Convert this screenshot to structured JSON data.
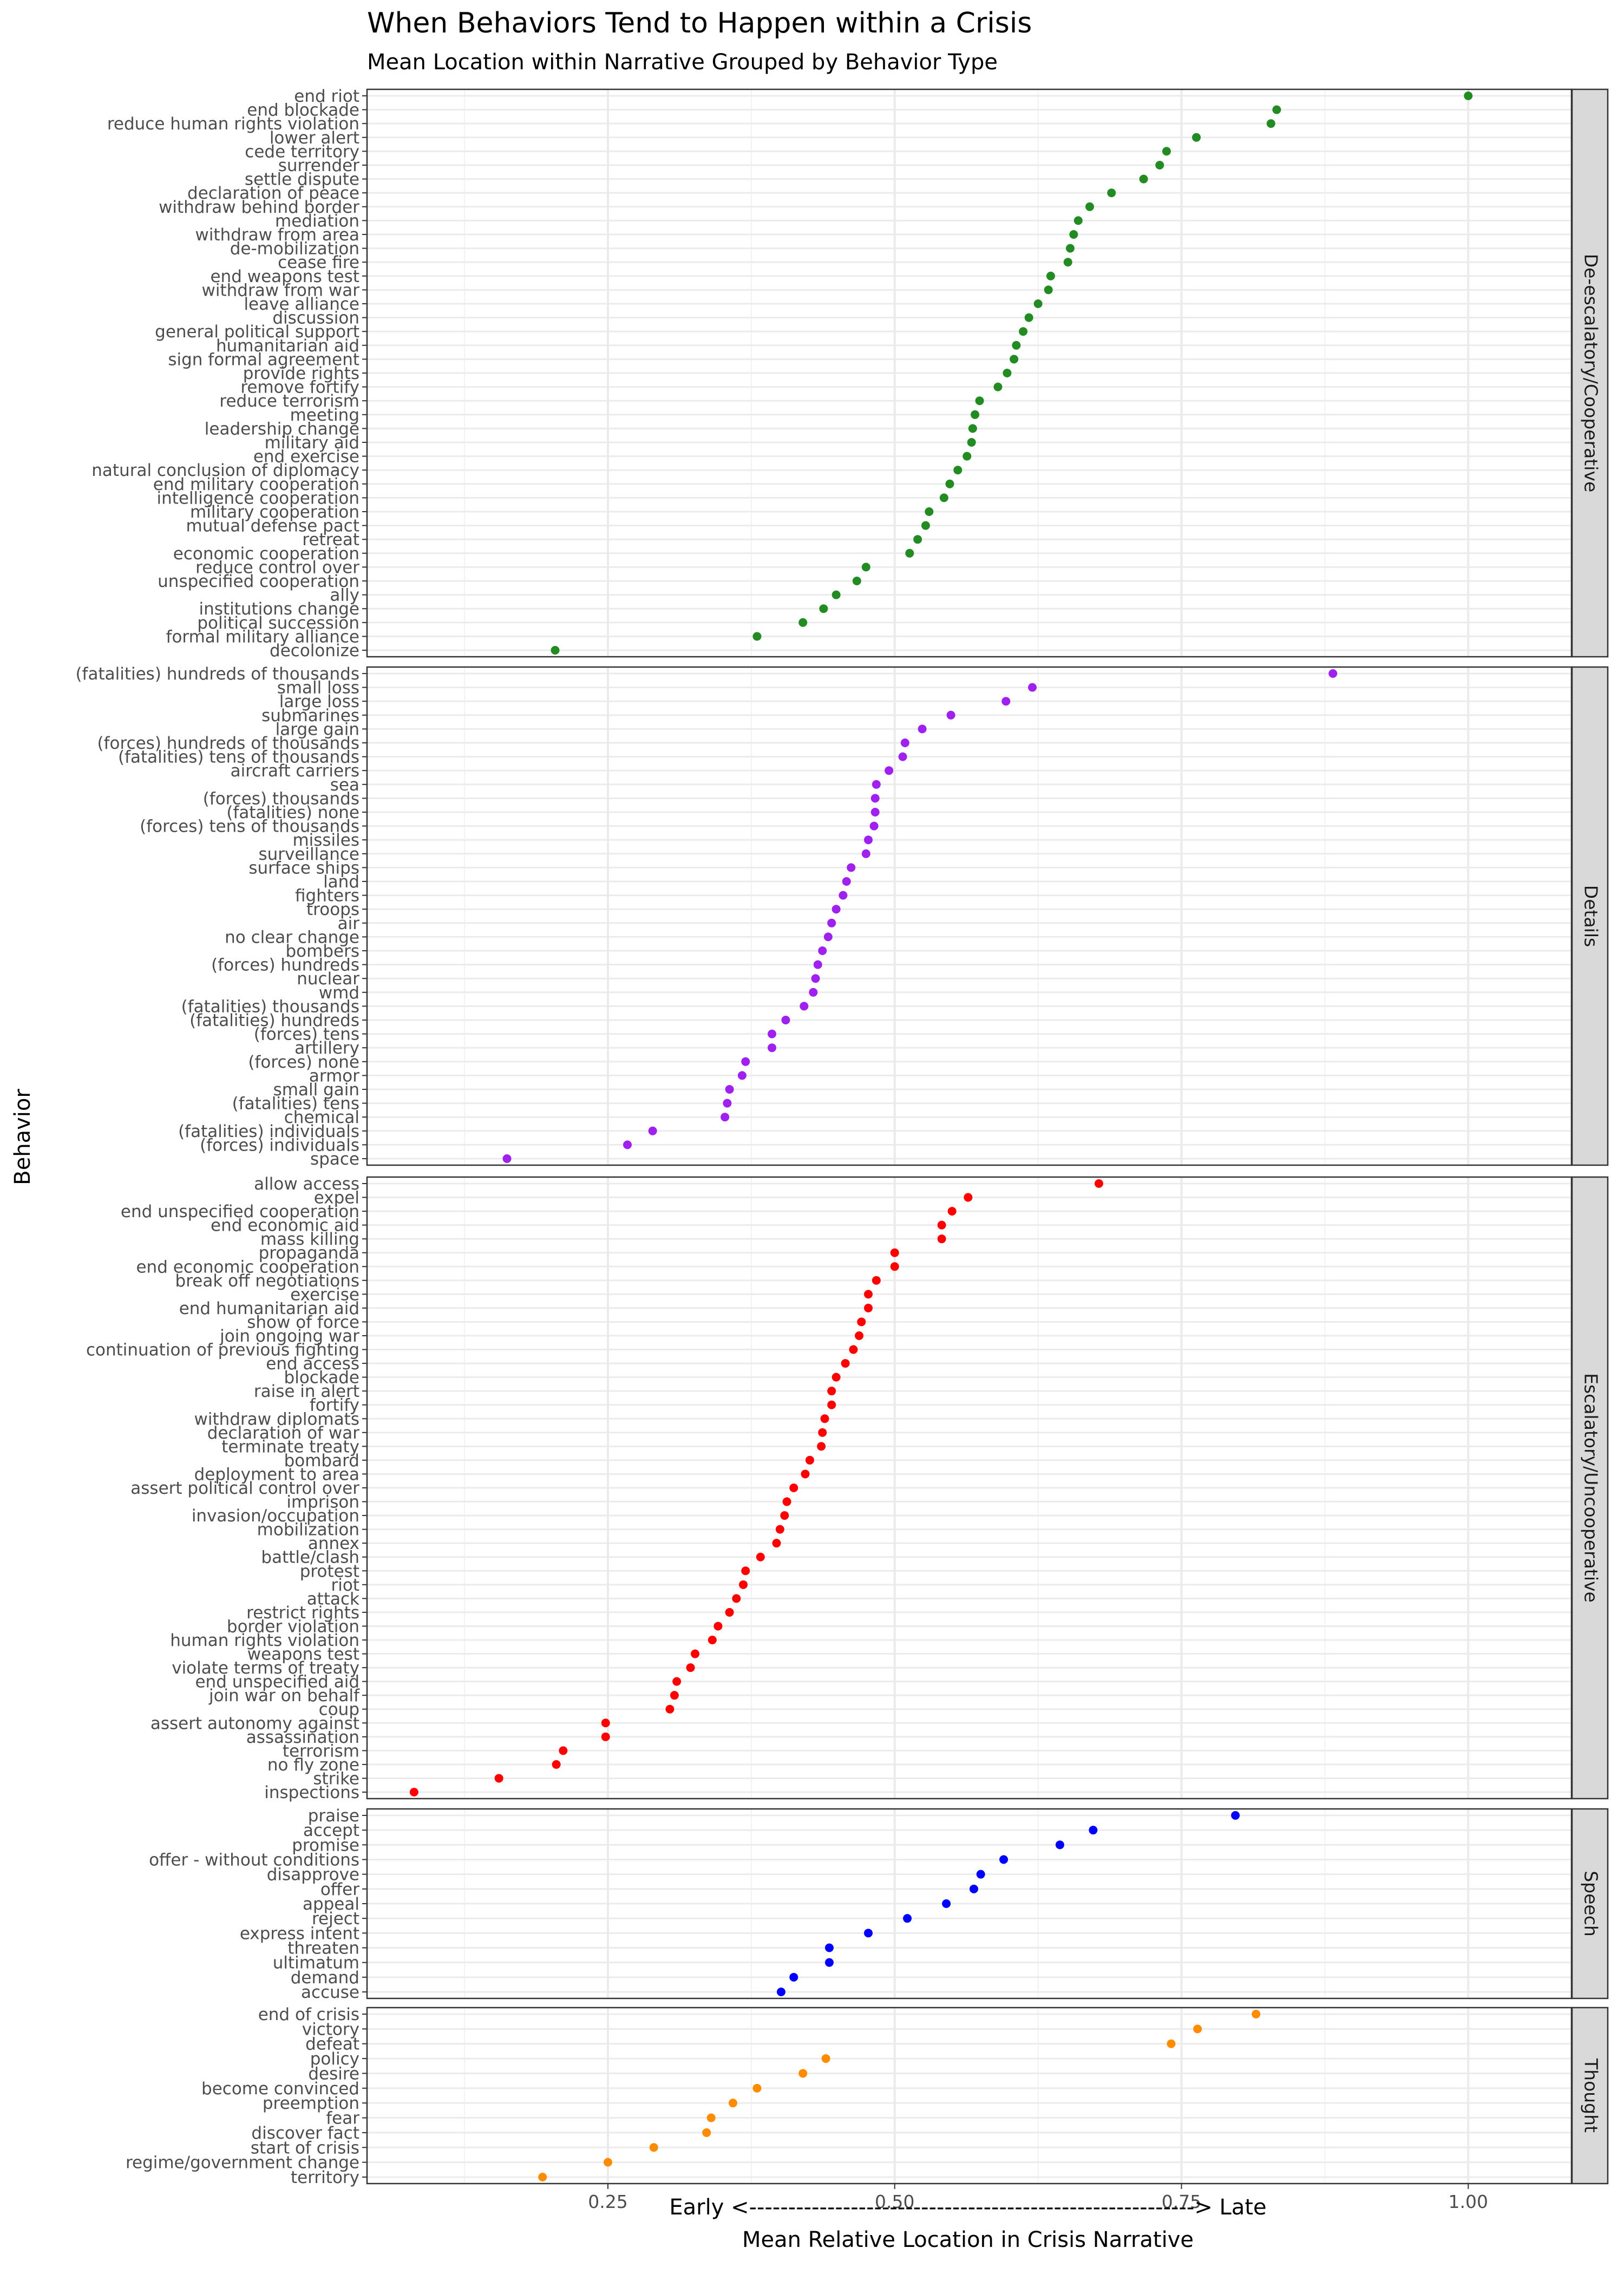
{
  "chart_data": {
    "type": "scatter",
    "title": "When Behaviors Tend to Happen within a Crisis",
    "subtitle": "Mean Location within Narrative Grouped by Behavior Type",
    "xlabel_line1": "Early <---------------------------------------------------------> Late",
    "xlabel_line2": "Mean Relative Location in Crisis Narrative",
    "ylabel": "Behavior",
    "xlim": [
      0.04,
      1.09
    ],
    "x_ticks": [
      0.25,
      0.5,
      0.75,
      1.0
    ],
    "x_tick_labels": [
      "0.25",
      "0.50",
      "0.75",
      "1.00"
    ],
    "grid": true,
    "facets": [
      {
        "name": "De-escalatory/Cooperative",
        "color": "#228B22",
        "behaviors": [
          "end riot",
          "end blockade",
          "reduce human rights violation",
          "lower alert",
          "cede territory",
          "surrender",
          "settle dispute",
          "declaration of peace",
          "withdraw behind border",
          "mediation",
          "withdraw from area",
          "de-mobilization",
          "cease fire",
          "end weapons test",
          "withdraw from war",
          "leave alliance",
          "discussion",
          "general political support",
          "humanitarian aid",
          "sign formal agreement",
          "provide rights",
          "remove fortify",
          "reduce terrorism",
          "meeting",
          "leadership change",
          "military aid",
          "end exercise",
          "natural conclusion of diplomacy",
          "end military cooperation",
          "intelligence cooperation",
          "military cooperation",
          "mutual defense pact",
          "retreat",
          "economic cooperation",
          "reduce control over",
          "unspecified cooperation",
          "ally",
          "institutions change",
          "political succession",
          "formal military alliance",
          "decolonize"
        ],
        "values": [
          1.0,
          0.833,
          0.828,
          0.763,
          0.737,
          0.731,
          0.717,
          0.689,
          0.67,
          0.66,
          0.656,
          0.653,
          0.651,
          0.636,
          0.634,
          0.625,
          0.617,
          0.612,
          0.606,
          0.604,
          0.598,
          0.59,
          0.574,
          0.57,
          0.568,
          0.567,
          0.563,
          0.555,
          0.548,
          0.543,
          0.53,
          0.527,
          0.52,
          0.513,
          0.475,
          0.467,
          0.449,
          0.438,
          0.42,
          0.38,
          0.204
        ]
      },
      {
        "name": "Details",
        "color": "#A020F0",
        "behaviors": [
          "(fatalities) hundreds of thousands",
          "small loss",
          "large loss",
          "submarines",
          "large gain",
          "(forces) hundreds of thousands",
          "(fatalities) tens of thousands",
          "aircraft carriers",
          "sea",
          "(forces) thousands",
          "(fatalities) none",
          "(forces) tens of thousands",
          "missiles",
          "surveillance",
          "surface ships",
          "land",
          "fighters",
          "troops",
          "air",
          "no clear change",
          "bombers",
          "(forces) hundreds",
          "nuclear",
          "wmd",
          "(fatalities) thousands",
          "(fatalities) hundreds",
          "(forces) tens",
          "artillery",
          "(forces) none",
          "armor",
          "small gain",
          "(fatalities) tens",
          "chemical",
          "(fatalities) individuals",
          "(forces) individuals",
          "space"
        ],
        "values": [
          0.882,
          0.62,
          0.597,
          0.549,
          0.524,
          0.509,
          0.507,
          0.495,
          0.484,
          0.483,
          0.483,
          0.482,
          0.477,
          0.475,
          0.462,
          0.458,
          0.455,
          0.449,
          0.445,
          0.442,
          0.437,
          0.433,
          0.431,
          0.429,
          0.421,
          0.405,
          0.393,
          0.393,
          0.37,
          0.367,
          0.356,
          0.354,
          0.352,
          0.289,
          0.267,
          0.162
        ]
      },
      {
        "name": "Escalatory/Uncooperative",
        "color": "#FF0000",
        "behaviors": [
          "allow access",
          "expel",
          "end unspecified cooperation",
          "end economic aid",
          "mass killing",
          "propaganda",
          "end economic cooperation",
          "break off negotiations",
          "exercise",
          "end humanitarian aid",
          "show of force",
          "join ongoing war",
          "continuation of previous fighting",
          "end access",
          "blockade",
          "raise in alert",
          "fortify",
          "withdraw diplomats",
          "declaration of war",
          "terminate treaty",
          "bombard",
          "deployment to area",
          "assert political control over",
          "imprison",
          "invasion/occupation",
          "mobilization",
          "annex",
          "battle/clash",
          "protest",
          "riot",
          "attack",
          "restrict rights",
          "border violation",
          "human rights violation",
          "weapons test",
          "violate terms of treaty",
          "end unspecified aid",
          "join war on behalf",
          "coup",
          "assert autonomy against",
          "assassination",
          "terrorism",
          "no fly zone",
          "strike",
          "inspections"
        ],
        "values": [
          0.678,
          0.564,
          0.55,
          0.541,
          0.541,
          0.5,
          0.5,
          0.484,
          0.477,
          0.477,
          0.471,
          0.469,
          0.464,
          0.457,
          0.449,
          0.445,
          0.445,
          0.439,
          0.437,
          0.436,
          0.426,
          0.422,
          0.412,
          0.406,
          0.404,
          0.4,
          0.397,
          0.383,
          0.37,
          0.368,
          0.362,
          0.356,
          0.346,
          0.341,
          0.326,
          0.322,
          0.31,
          0.308,
          0.304,
          0.248,
          0.248,
          0.211,
          0.205,
          0.155,
          0.081
        ]
      },
      {
        "name": "Speech",
        "color": "#0000FF",
        "behaviors": [
          "praise",
          "accept",
          "promise",
          "offer - without conditions",
          "disapprove",
          "offer",
          "appeal",
          "reject",
          "express intent",
          "threaten",
          "ultimatum",
          "demand",
          "accuse"
        ],
        "values": [
          0.797,
          0.673,
          0.644,
          0.595,
          0.575,
          0.569,
          0.545,
          0.511,
          0.477,
          0.443,
          0.443,
          0.412,
          0.401
        ]
      },
      {
        "name": "Thought",
        "color": "#FF8C00",
        "behaviors": [
          "end of crisis",
          "victory",
          "defeat",
          "policy",
          "desire",
          "become convinced",
          "preemption",
          "fear",
          "discover fact",
          "start of crisis",
          "regime/government change",
          "territory"
        ],
        "values": [
          0.815,
          0.764,
          0.741,
          0.44,
          0.42,
          0.38,
          0.359,
          0.34,
          0.336,
          0.29,
          0.25,
          0.193
        ]
      }
    ]
  }
}
